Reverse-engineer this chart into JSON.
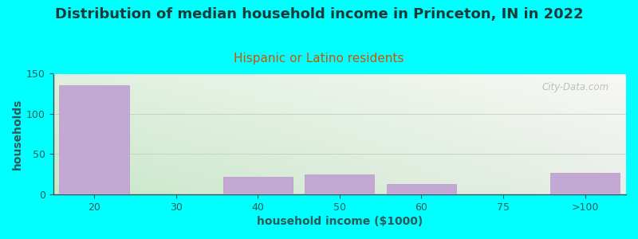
{
  "title": "Distribution of median household income in Princeton, IN in 2022",
  "subtitle": "Hispanic or Latino residents",
  "xlabel": "household income ($1000)",
  "ylabel": "households",
  "background_color": "#00FFFF",
  "plot_bg_color_topleft": "#E8F5E8",
  "plot_bg_color_topright": "#F5F5F0",
  "plot_bg_color_bottomleft": "#D0EDD0",
  "plot_bg_color_bottomright": "#EAEAEA",
  "bar_color": "#C4A8D4",
  "bar_edge_color": "#B898C8",
  "categories": [
    "20",
    "30",
    "40",
    "50",
    "60",
    "75",
    ">100"
  ],
  "values": [
    135,
    0,
    22,
    25,
    13,
    0,
    27
  ],
  "ylim": [
    0,
    150
  ],
  "yticks": [
    0,
    50,
    100,
    150
  ],
  "title_fontsize": 13,
  "subtitle_fontsize": 11,
  "title_color": "#1A3A3A",
  "subtitle_color": "#CC5500",
  "axis_label_fontsize": 10,
  "tick_fontsize": 9,
  "tick_color": "#2A5A5A",
  "watermark": "City-Data.com"
}
